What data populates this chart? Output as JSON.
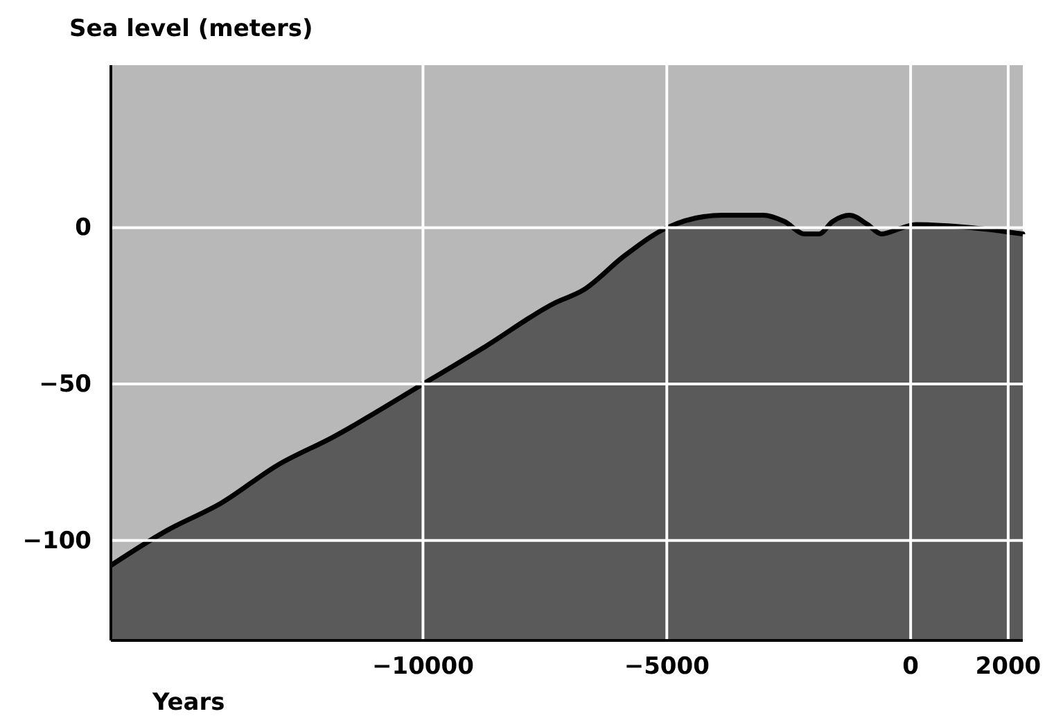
{
  "chart_data": {
    "type": "area",
    "ylabel": "Sea level (meters)",
    "xlabel": "Years",
    "x": [
      -16400,
      -15270,
      -14130,
      -12990,
      -11850,
      -10000,
      -8720,
      -7290,
      -6720,
      -5870,
      -5000,
      -3870,
      -3020,
      -2590,
      -2170,
      -1880,
      -1600,
      -1250,
      -880,
      -600,
      -170,
      110,
      1250,
      2300
    ],
    "series": [
      {
        "color": "#5a5a5a",
        "values": [
          -108,
          -97,
          -88,
          -76,
          -67,
          -50,
          -38,
          -24,
          -20,
          -9,
          0,
          4,
          4,
          2,
          -2,
          -2,
          2,
          4,
          1,
          -2,
          0,
          1,
          0,
          -2
        ]
      }
    ],
    "xlim": [
      -16400,
      2300
    ],
    "ylim": [
      -132,
      52
    ],
    "xticks": [
      -10000,
      -5000,
      0,
      2000
    ],
    "yticks": [
      -100,
      -50,
      0
    ],
    "grid": true
  }
}
